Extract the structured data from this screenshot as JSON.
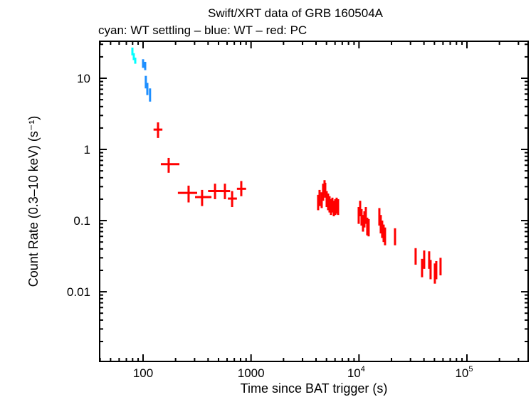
{
  "chart_data": {
    "type": "scatter",
    "title": "Swift/XRT data of GRB 160504A",
    "subtitle": "cyan: WT settling – blue: WT – red: PC",
    "xlabel": "Time since BAT trigger (s)",
    "ylabel": "Count Rate (0.3–10 keV) (s⁻¹)",
    "xscale": "log",
    "yscale": "log",
    "xlim": [
      39.6,
      369000
    ],
    "ylim": [
      0.00105,
      33.1
    ],
    "grid": false,
    "x_ticks": [
      {
        "value": 100,
        "label": "100"
      },
      {
        "value": 1000,
        "label": "1000"
      },
      {
        "value": 10000,
        "label": "10",
        "exp": "4"
      },
      {
        "value": 100000,
        "label": "10",
        "exp": "5"
      }
    ],
    "y_ticks": [
      {
        "value": 0.01,
        "label": "0.01"
      },
      {
        "value": 0.1,
        "label": "0.1"
      },
      {
        "value": 1,
        "label": "1"
      },
      {
        "value": 10,
        "label": "10"
      }
    ],
    "point_format": [
      "x",
      "y",
      "x_low",
      "x_high",
      "y_low",
      "y_high"
    ],
    "series": [
      {
        "mode": "WT settling",
        "color": "#00ffff",
        "points": [
          [
            79.6,
            24,
            78.5,
            80.8,
            21,
            27
          ],
          [
            82,
            20,
            81,
            83,
            18,
            22.5
          ],
          [
            84.6,
            17.8,
            83.5,
            85.7,
            16,
            19.5
          ]
        ]
      },
      {
        "mode": "WT",
        "color": "#1e8fff",
        "points": [
          [
            100,
            16.2,
            98.5,
            101.5,
            14,
            18.5
          ],
          [
            104.6,
            15.1,
            103,
            106,
            13,
            17
          ],
          [
            106,
            8.9,
            104.5,
            107.5,
            7.2,
            10.8
          ],
          [
            109.5,
            7.1,
            108,
            111,
            5.8,
            8.6
          ],
          [
            116,
            5.9,
            114,
            118,
            4.7,
            7.2
          ]
        ]
      },
      {
        "mode": "PC",
        "color": "#ff0000",
        "points": [
          [
            137.5,
            1.9,
            125,
            151,
            1.45,
            2.4
          ],
          [
            172.6,
            0.62,
            146,
            217,
            0.47,
            0.76
          ],
          [
            264,
            0.245,
            210,
            317,
            0.18,
            0.31
          ],
          [
            352,
            0.214,
            303,
            430,
            0.16,
            0.27
          ],
          [
            464,
            0.26,
            400,
            540,
            0.2,
            0.33
          ],
          [
            573,
            0.26,
            520,
            640,
            0.2,
            0.33
          ],
          [
            668,
            0.204,
            610,
            740,
            0.155,
            0.26
          ],
          [
            812,
            0.28,
            740,
            900,
            0.22,
            0.36
          ],
          [
            4183,
            0.182,
            4120,
            4250,
            0.14,
            0.23
          ],
          [
            4313,
            0.209,
            4250,
            4380,
            0.16,
            0.27
          ],
          [
            4515,
            0.191,
            4450,
            4580,
            0.15,
            0.25
          ],
          [
            4653,
            0.251,
            4590,
            4720,
            0.19,
            0.33
          ],
          [
            4797,
            0.295,
            4730,
            4870,
            0.23,
            0.37
          ],
          [
            4871,
            0.269,
            4800,
            4940,
            0.21,
            0.34
          ],
          [
            5020,
            0.2,
            4950,
            5090,
            0.155,
            0.26
          ],
          [
            5175,
            0.186,
            5100,
            5250,
            0.14,
            0.24
          ],
          [
            5336,
            0.17,
            5260,
            5410,
            0.13,
            0.22
          ],
          [
            5500,
            0.158,
            5420,
            5580,
            0.12,
            0.2
          ],
          [
            5670,
            0.166,
            5590,
            5750,
            0.13,
            0.21
          ],
          [
            5845,
            0.151,
            5760,
            5930,
            0.115,
            0.19
          ],
          [
            6025,
            0.155,
            5940,
            6110,
            0.12,
            0.2
          ],
          [
            6210,
            0.162,
            6120,
            6300,
            0.125,
            0.21
          ],
          [
            6400,
            0.158,
            6310,
            6490,
            0.12,
            0.2
          ],
          [
            9940,
            0.12,
            9800,
            10080,
            0.09,
            0.155
          ],
          [
            10250,
            0.151,
            10100,
            10400,
            0.115,
            0.19
          ],
          [
            10560,
            0.112,
            10400,
            10720,
            0.085,
            0.145
          ],
          [
            10890,
            0.093,
            10730,
            11050,
            0.07,
            0.12
          ],
          [
            11230,
            0.105,
            11070,
            11390,
            0.08,
            0.135
          ],
          [
            11570,
            0.12,
            11400,
            11740,
            0.09,
            0.155
          ],
          [
            11930,
            0.083,
            11760,
            12100,
            0.062,
            0.11
          ],
          [
            12290,
            0.079,
            12110,
            12470,
            0.06,
            0.105
          ],
          [
            15440,
            0.115,
            15200,
            15680,
            0.085,
            0.15
          ],
          [
            15910,
            0.089,
            15670,
            16150,
            0.066,
            0.12
          ],
          [
            16400,
            0.076,
            16150,
            16650,
            0.057,
            0.1
          ],
          [
            16910,
            0.066,
            16650,
            17170,
            0.05,
            0.088
          ],
          [
            17430,
            0.06,
            17170,
            17690,
            0.045,
            0.08
          ],
          [
            21560,
            0.059,
            21250,
            21870,
            0.045,
            0.078
          ],
          [
            33470,
            0.0316,
            33000,
            33940,
            0.024,
            0.041
          ],
          [
            38380,
            0.0219,
            37840,
            38920,
            0.016,
            0.029
          ],
          [
            40170,
            0.0282,
            39600,
            40740,
            0.021,
            0.038
          ],
          [
            44670,
            0.0282,
            44040,
            45300,
            0.021,
            0.037
          ],
          [
            46050,
            0.0209,
            45400,
            46700,
            0.015,
            0.028
          ],
          [
            50440,
            0.0182,
            49730,
            51150,
            0.013,
            0.025
          ],
          [
            52000,
            0.02,
            51270,
            52730,
            0.015,
            0.027
          ],
          [
            56950,
            0.0224,
            56150,
            57750,
            0.017,
            0.03
          ]
        ]
      }
    ]
  }
}
